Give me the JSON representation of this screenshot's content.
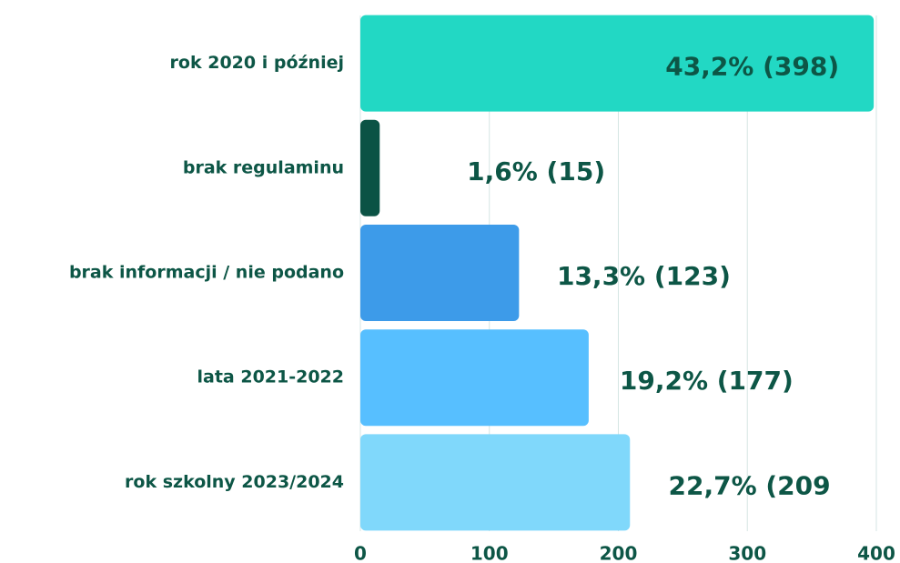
{
  "chart_data": {
    "type": "bar",
    "orientation": "horizontal",
    "categories": [
      "rok 2020 i później",
      "brak regulaminu",
      "brak informacji / nie podano",
      "lata 2021-2022",
      "rok szkolny 2023/2024"
    ],
    "values": [
      398,
      15,
      123,
      177,
      209
    ],
    "value_labels": [
      "43,2% (398)",
      "1,6% (15)",
      "13,3% (123)",
      "19,2% (177)",
      "22,7% (209"
    ],
    "colors": [
      "#22d8c4",
      "#0b5345",
      "#3d9be9",
      "#57bfff",
      "#80d8fb"
    ],
    "xlim": [
      0,
      400
    ],
    "xticks": [
      0,
      100,
      200,
      300,
      400
    ],
    "grid": true
  }
}
